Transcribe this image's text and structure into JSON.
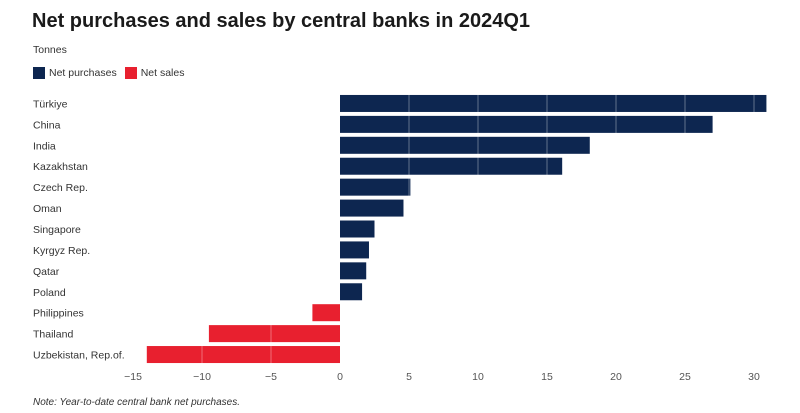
{
  "chart_data": {
    "type": "bar",
    "orientation": "horizontal",
    "title": "Net purchases and sales by central banks in 2024Q1",
    "subtitle": "Tonnes",
    "note": "Note: Year-to-date central bank net purchases.",
    "legend": [
      {
        "label": "Net purchases",
        "color": "#0d2650"
      },
      {
        "label": "Net sales",
        "color": "#e8202f"
      }
    ],
    "categories": [
      "Türkiye",
      "China",
      "India",
      "Kazakhstan",
      "Czech Rep.",
      "Oman",
      "Singapore",
      "Kyrgyz Rep.",
      "Qatar",
      "Poland",
      "Philippines",
      "Thailand",
      "Uzbekistan, Rep.of."
    ],
    "values": [
      30.9,
      27,
      18.1,
      16.1,
      5.1,
      4.6,
      2.5,
      2.1,
      1.9,
      1.6,
      -2,
      -9.5,
      -14
    ],
    "xlim": [
      -15,
      31
    ],
    "xticks": [
      -15,
      -10,
      -5,
      0,
      5,
      10,
      15,
      20,
      25,
      30
    ],
    "tick_labels": [
      "−15",
      "−10",
      "−5",
      "0",
      "5",
      "10",
      "15",
      "20",
      "25",
      "30"
    ],
    "grid": "vertical",
    "legend_position": "top-left"
  }
}
